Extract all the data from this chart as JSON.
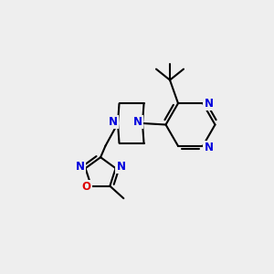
{
  "background_color": "#eeeeee",
  "bond_color": "#000000",
  "N_color": "#0000dd",
  "O_color": "#dd0000",
  "line_width": 1.5,
  "font_size": 8.5,
  "dbo": 0.012,
  "figsize": [
    3.0,
    3.0
  ],
  "dpi": 100,
  "xlim": [
    0.0,
    1.0
  ],
  "ylim": [
    0.0,
    1.0
  ]
}
